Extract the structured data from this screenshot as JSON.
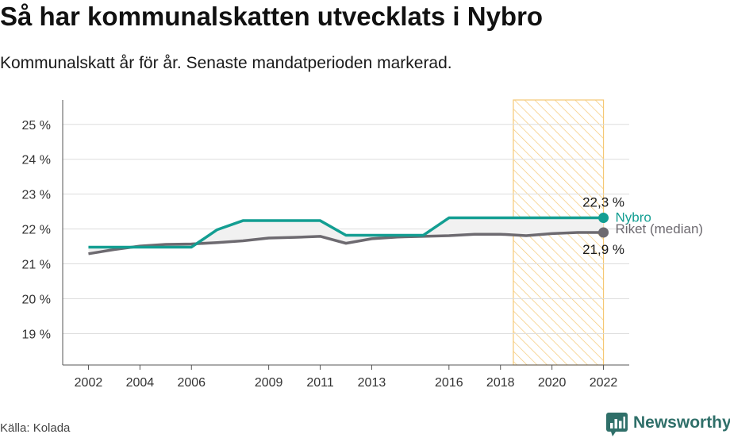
{
  "title": "Så har kommunalskatten utvecklats i Nybro",
  "subtitle": "Kommunalskatt år för år. Senaste mandatperioden markerad.",
  "source": "Källa: Kolada",
  "brand": {
    "name": "Newsworthy",
    "icon": "newsworthy-logo-icon"
  },
  "colors": {
    "nybro": "#139e92",
    "riket": "#6d6a70",
    "highlight": "#f5c874",
    "grid": "#dddddd",
    "fill_between": "#f1f1f1"
  },
  "chart_data": {
    "type": "line",
    "title": "Så har kommunalskatten utvecklats i Nybro",
    "subtitle": "Kommunalskatt år för år. Senaste mandatperioden markerad.",
    "xlabel": "",
    "ylabel": "",
    "xlim": [
      2001,
      2023
    ],
    "ylim": [
      18.1,
      25.7
    ],
    "x": [
      2002,
      2003,
      2004,
      2005,
      2006,
      2007,
      2008,
      2009,
      2010,
      2011,
      2012,
      2013,
      2014,
      2015,
      2016,
      2017,
      2018,
      2019,
      2020,
      2021,
      2022
    ],
    "x_ticks": [
      2002,
      2004,
      2006,
      2009,
      2011,
      2013,
      2016,
      2018,
      2020,
      2022
    ],
    "x_tick_labels": [
      "2002",
      "2004",
      "2006",
      "2009",
      "2011",
      "2013",
      "2016",
      "2018",
      "2020",
      "2022"
    ],
    "y_ticks": [
      19,
      20,
      21,
      22,
      23,
      24,
      25
    ],
    "y_tick_labels": [
      "19 %",
      "20 %",
      "21 %",
      "22 %",
      "23 %",
      "24 %",
      "25 %"
    ],
    "highlight_period": {
      "from": 2018.5,
      "to": 2022,
      "label": "Senaste mandatperioden"
    },
    "series": [
      {
        "name": "Nybro",
        "color": "#139e92",
        "values": [
          21.48,
          21.48,
          21.48,
          21.48,
          21.48,
          21.98,
          22.24,
          22.24,
          22.24,
          22.24,
          21.82,
          21.82,
          21.82,
          21.82,
          22.32,
          22.32,
          22.32,
          22.32,
          22.32,
          22.32,
          22.32
        ],
        "end_label": "22,3 %"
      },
      {
        "name": "Riket (median)",
        "color": "#6d6a70",
        "values": [
          21.29,
          21.41,
          21.51,
          21.56,
          21.57,
          21.61,
          21.66,
          21.74,
          21.76,
          21.79,
          21.59,
          21.72,
          21.77,
          21.79,
          21.81,
          21.85,
          21.85,
          21.81,
          21.87,
          21.9,
          21.9
        ],
        "end_label": "21,9 %"
      }
    ],
    "legend": "inline-right"
  }
}
